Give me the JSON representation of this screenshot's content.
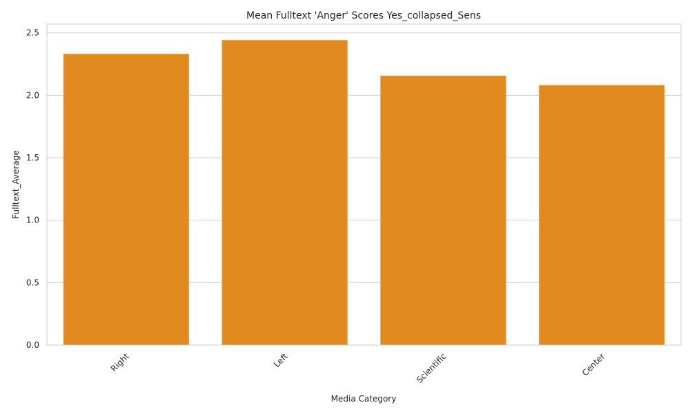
{
  "chart_data": {
    "type": "bar",
    "title": "Mean Fulltext 'Anger' Scores Yes_collapsed_Sens",
    "xlabel": "Media Category",
    "ylabel": "Fulltext_Average",
    "categories": [
      "Right",
      "Left",
      "Scientific",
      "Center"
    ],
    "values": [
      2.33,
      2.44,
      2.155,
      2.08
    ],
    "ylim": [
      0,
      2.57
    ],
    "yticks": [
      "0.0",
      "0.5",
      "1.0",
      "1.5",
      "2.0",
      "2.5"
    ],
    "grid": "horizontal",
    "legend": "none",
    "colors": {
      "bar": "#e08a1f",
      "bar_edge": "#f0a347",
      "grid": "#d0d0d0",
      "frame": "#cccccc"
    }
  }
}
